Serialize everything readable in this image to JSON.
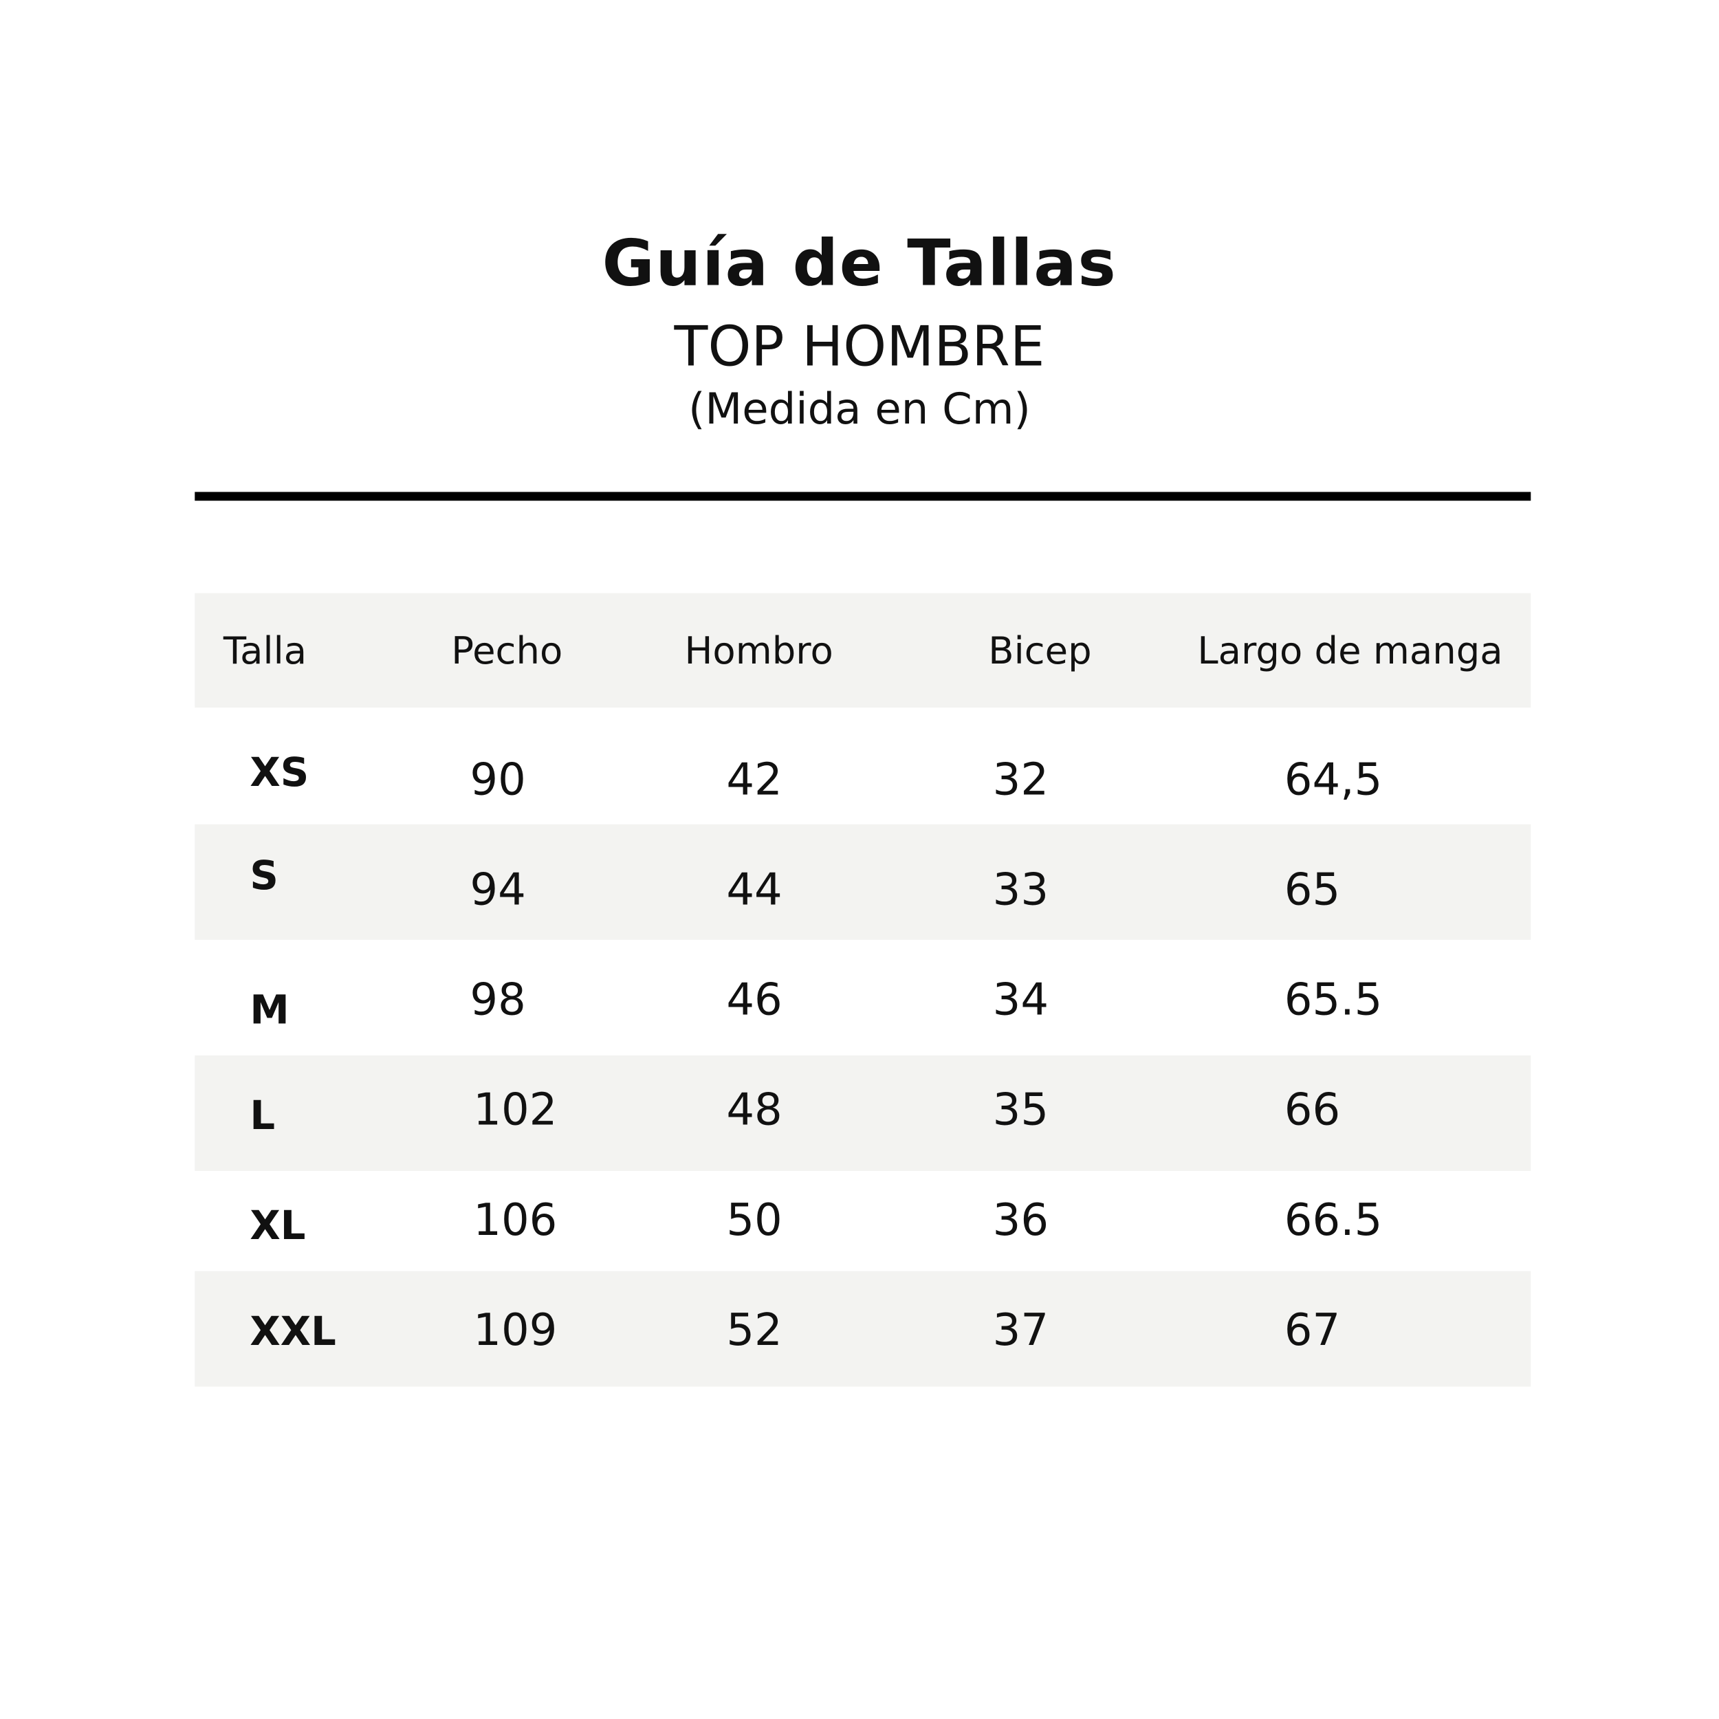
{
  "title": "Guía de Tallas",
  "subtitle": "TOP HOMBRE",
  "units": "(Medida en Cm)",
  "colors": {
    "row_band": "#f3f3f1",
    "text": "#111111",
    "rule": "#000000"
  },
  "table": {
    "headers": [
      "Talla",
      "Pecho",
      "Hombro",
      "Bicep",
      "Largo de manga"
    ],
    "rows": [
      [
        "XS",
        "90",
        "42",
        "32",
        "64,5"
      ],
      [
        "S",
        "94",
        "44",
        "33",
        "65"
      ],
      [
        "M",
        "98",
        "46",
        "34",
        "65.5"
      ],
      [
        "L",
        "102",
        "48",
        "35",
        "66"
      ],
      [
        "XL",
        "106",
        "50",
        "36",
        "66.5"
      ],
      [
        "XXL",
        "109",
        "52",
        "37",
        "67"
      ]
    ]
  }
}
